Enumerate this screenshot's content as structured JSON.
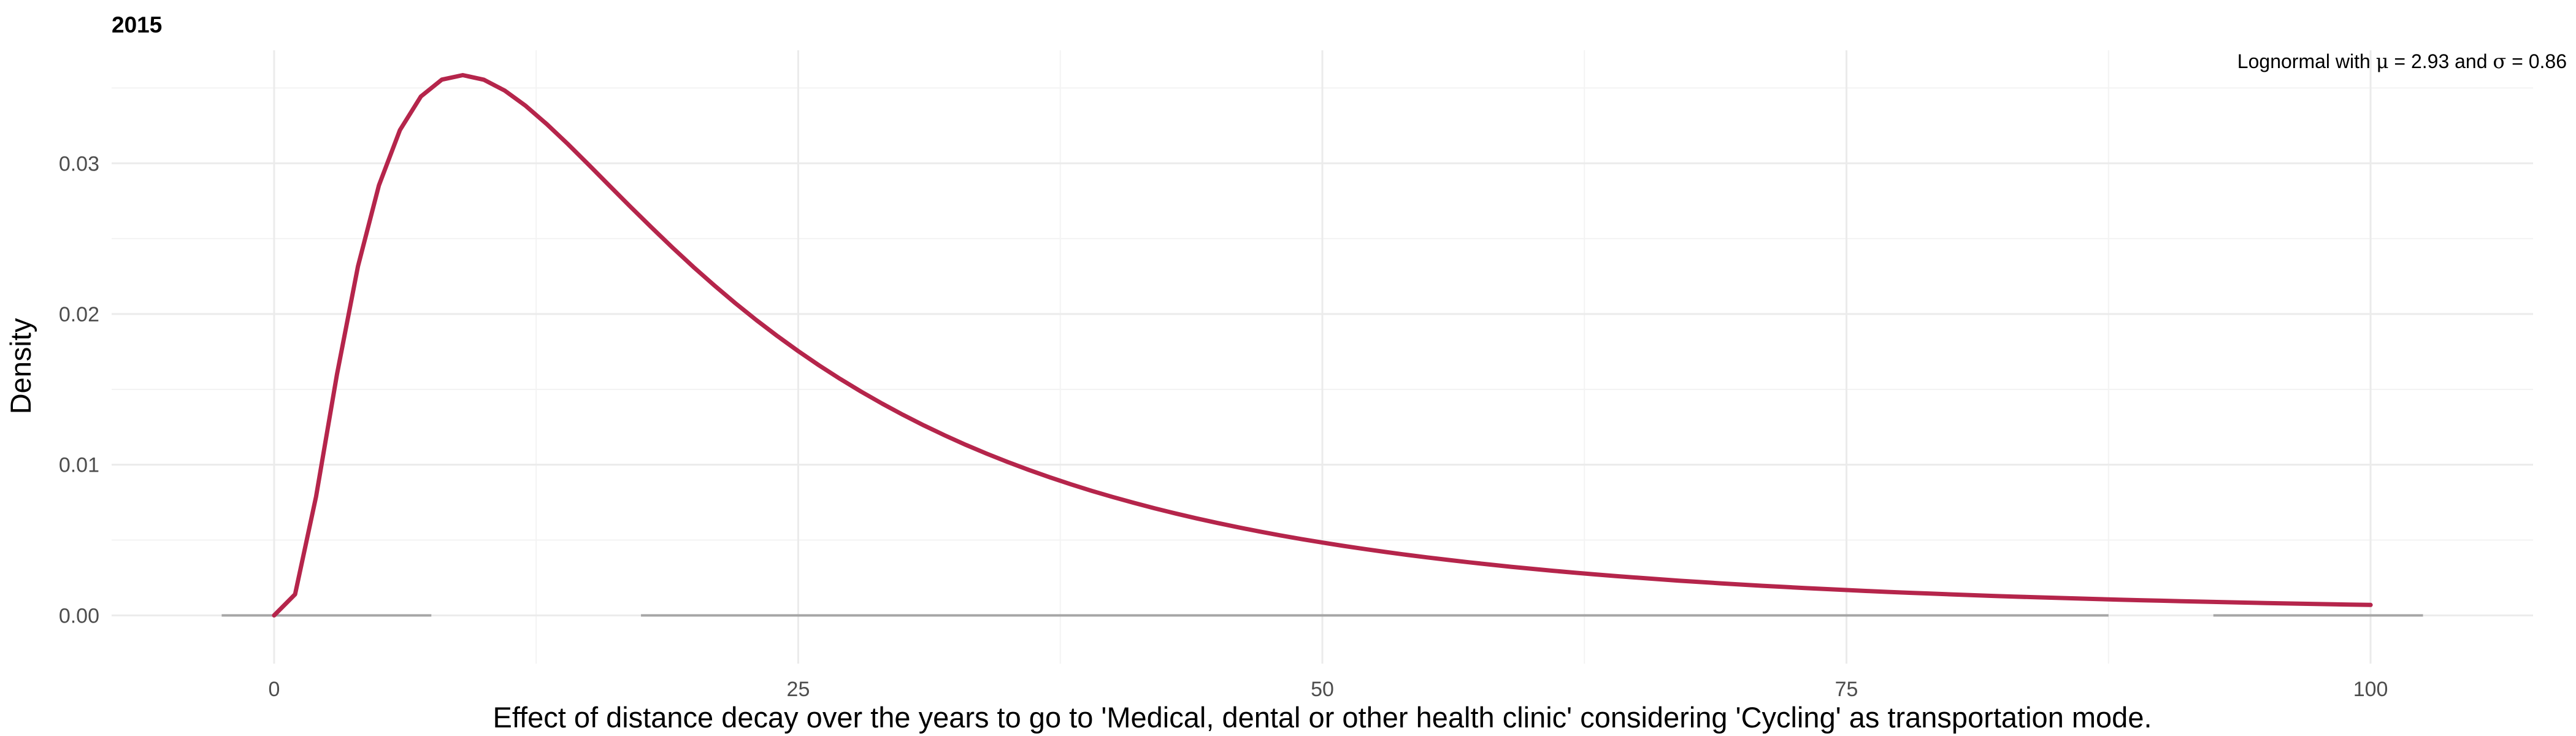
{
  "chart_data": {
    "type": "line",
    "title": "2015",
    "xlabel": "Effect of distance decay over the years to go to 'Medical, dental or other health clinic' considering 'Cycling' as transportation mode.",
    "ylabel": "Density",
    "xlim": [
      -7.75,
      107.75
    ],
    "ylim": [
      -0.0032,
      0.0375
    ],
    "x_ticks": [
      0,
      25,
      50,
      75,
      100
    ],
    "x_tick_labels": [
      "0",
      "25",
      "50",
      "75",
      "100"
    ],
    "x_minor_ticks": [
      12.5,
      37.5,
      62.5,
      87.5
    ],
    "y_ticks": [
      0.0,
      0.01,
      0.02,
      0.03
    ],
    "y_tick_labels": [
      "0.00",
      "0.01",
      "0.02",
      "0.03"
    ],
    "y_minor_ticks": [
      0.005,
      0.015,
      0.025,
      0.035
    ],
    "grid": true,
    "distribution": {
      "name": "Lognormal",
      "mu": 2.93,
      "sigma": 0.86,
      "x_range": [
        0,
        100
      ],
      "n_points": 101
    },
    "annotation": {
      "prefix": "Lognormal with ",
      "mu_symbol": "μ",
      "mu_text": " = 2.93 and ",
      "sigma_symbol": "σ",
      "sigma_text": " = 0.86"
    },
    "baseline_segments": [
      [
        -2.5,
        7.5
      ],
      [
        17.5,
        87.5
      ],
      [
        92.5,
        102.5
      ]
    ],
    "series": [
      {
        "name": "Lognormal density",
        "color": "#b5254b"
      }
    ]
  }
}
